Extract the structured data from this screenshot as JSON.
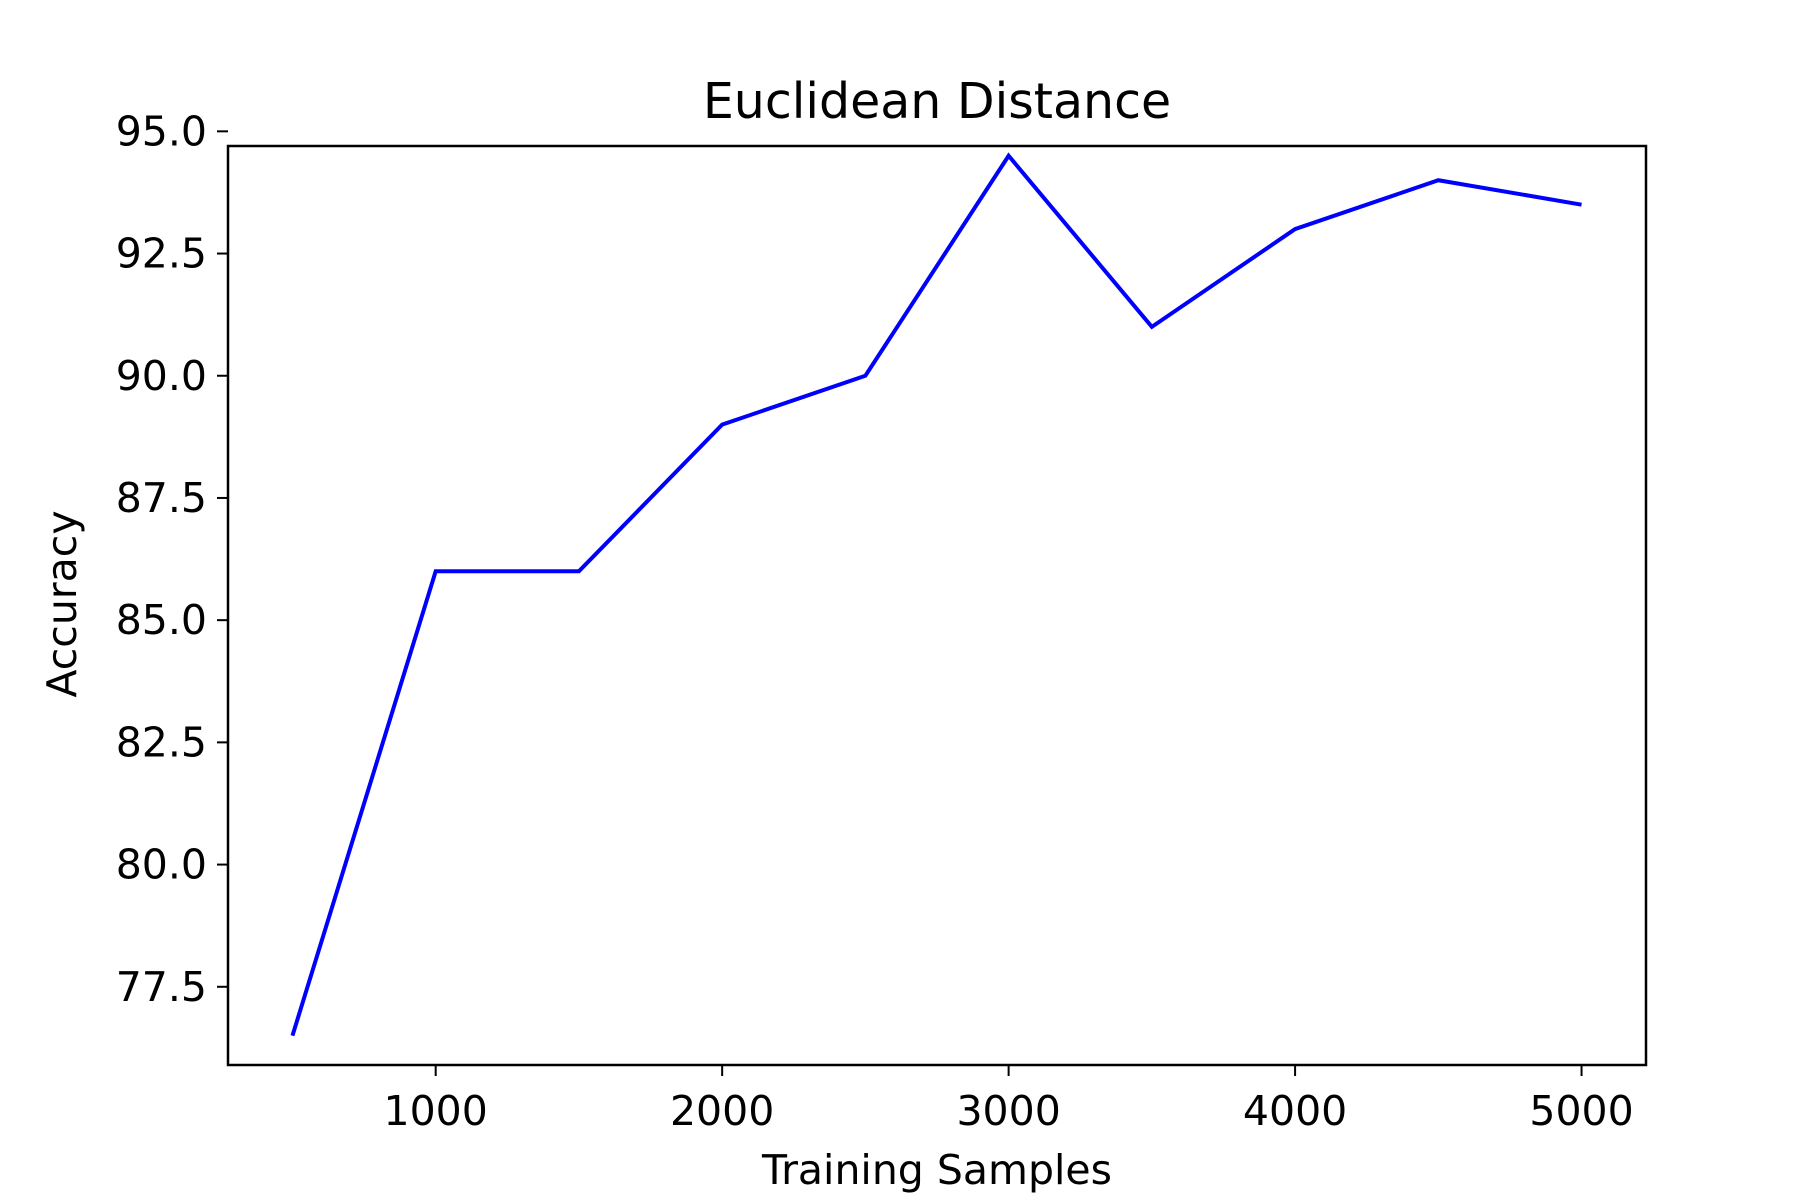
{
  "chart_data": {
    "type": "line",
    "title": "Euclidean Distance",
    "xlabel": "Training Samples",
    "ylabel": "Accuracy",
    "x": [
      500,
      1000,
      1500,
      2000,
      2500,
      3000,
      3500,
      4000,
      4500,
      5000
    ],
    "series": [
      {
        "color": "#0000ff",
        "values": [
          76.5,
          86.0,
          86.0,
          89.0,
          90.0,
          94.5,
          91.0,
          93.0,
          94.0,
          93.5
        ]
      }
    ],
    "xlim": [
      275,
      5225
    ],
    "ylim": [
      75.9,
      94.7
    ],
    "xticks": [
      1000,
      2000,
      3000,
      4000,
      5000
    ],
    "xtick_labels": [
      "1000",
      "2000",
      "3000",
      "4000",
      "5000"
    ],
    "yticks": [
      77.5,
      80.0,
      82.5,
      85.0,
      87.5,
      90.0,
      92.5,
      95.0
    ],
    "ytick_labels": [
      "77.5",
      "80.0",
      "82.5",
      "85.0",
      "87.5",
      "90.0",
      "92.5",
      "95.0"
    ],
    "grid": false,
    "legend": "none"
  }
}
